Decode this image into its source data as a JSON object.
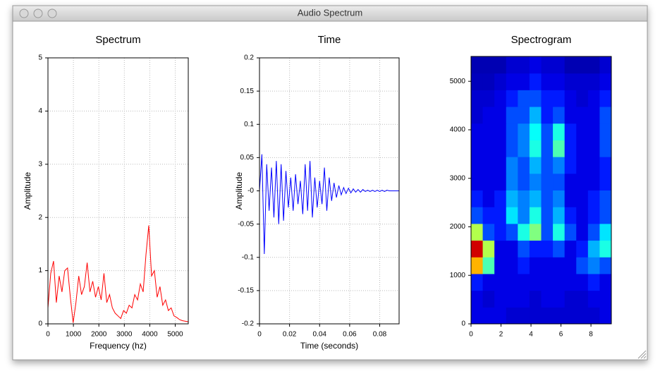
{
  "window": {
    "title": "Audio Spectrum"
  },
  "chart_data": [
    {
      "type": "line",
      "title": "Spectrum",
      "x_label": "Frequency (hz)",
      "y_label": "Amplitude",
      "color": "#ff0000",
      "grid": true,
      "xlim": [
        0,
        5512
      ],
      "xticks": [
        0,
        1000,
        2000,
        3000,
        4000,
        5000
      ],
      "ylim": [
        0,
        5
      ],
      "yticks": [
        0,
        1,
        2,
        3,
        4,
        5
      ],
      "x": [
        0,
        110,
        220,
        330,
        440,
        550,
        660,
        770,
        880,
        990,
        1100,
        1210,
        1320,
        1430,
        1540,
        1650,
        1760,
        1870,
        1980,
        2090,
        2200,
        2310,
        2420,
        2530,
        2640,
        2750,
        2860,
        2970,
        3080,
        3190,
        3300,
        3410,
        3520,
        3630,
        3740,
        3850,
        3960,
        4070,
        4180,
        4290,
        4400,
        4510,
        4620,
        4730,
        4840,
        4950,
        5060,
        5170,
        5280,
        5390,
        5500
      ],
      "values": [
        0.3,
        0.95,
        1.18,
        0.4,
        0.9,
        0.6,
        1.0,
        1.05,
        0.5,
        0.02,
        0.4,
        0.9,
        0.55,
        0.7,
        1.15,
        0.6,
        0.8,
        0.5,
        0.7,
        0.45,
        0.95,
        0.4,
        0.55,
        0.3,
        0.2,
        0.15,
        0.1,
        0.25,
        0.2,
        0.35,
        0.3,
        0.55,
        0.45,
        0.75,
        0.6,
        1.3,
        1.85,
        0.9,
        1.0,
        0.5,
        0.7,
        0.35,
        0.45,
        0.25,
        0.3,
        0.15,
        0.12,
        0.08,
        0.06,
        0.05,
        0.04
      ]
    },
    {
      "type": "line",
      "title": "Time",
      "x_label": "Time (seconds)",
      "y_label": "Amplitude",
      "color": "#0000ff",
      "grid": true,
      "xlim": [
        0,
        0.0929
      ],
      "xticks": [
        0,
        0.02,
        0.04,
        0.06,
        0.08
      ],
      "ylim": [
        -0.2,
        0.2
      ],
      "yticks": [
        -0.2,
        -0.15,
        -0.1,
        -0.05,
        {
          "value": 0,
          "label": "-0"
        },
        0.05,
        0.1,
        0.15,
        0.2
      ],
      "x": [
        0,
        0.0016,
        0.0032,
        0.0048,
        0.0064,
        0.008,
        0.0096,
        0.0112,
        0.0128,
        0.0144,
        0.016,
        0.0176,
        0.0192,
        0.0208,
        0.0224,
        0.024,
        0.0256,
        0.0272,
        0.0288,
        0.0304,
        0.032,
        0.0336,
        0.0352,
        0.0368,
        0.0384,
        0.04,
        0.0416,
        0.0432,
        0.0448,
        0.0464,
        0.048,
        0.0496,
        0.0512,
        0.0528,
        0.0544,
        0.056,
        0.0576,
        0.0592,
        0.0608,
        0.0624,
        0.064,
        0.0656,
        0.0672,
        0.0688,
        0.0704,
        0.072,
        0.0736,
        0.0752,
        0.0768,
        0.0784,
        0.08,
        0.0816,
        0.0832,
        0.0848,
        0.0864,
        0.088,
        0.0896,
        0.0912,
        0.0928
      ],
      "values": [
        0,
        0.055,
        -0.095,
        0.04,
        -0.03,
        0.035,
        -0.04,
        0.045,
        -0.05,
        0.04,
        -0.045,
        0.03,
        -0.025,
        0.02,
        -0.03,
        0.025,
        -0.02,
        0.015,
        -0.035,
        0.04,
        -0.03,
        0.045,
        -0.04,
        0.02,
        -0.025,
        0.015,
        -0.02,
        0.035,
        -0.03,
        0.02,
        -0.015,
        0.012,
        -0.01,
        0.008,
        -0.006,
        0.005,
        -0.004,
        0.004,
        -0.003,
        0.003,
        -0.002,
        0.002,
        -0.002,
        0.002,
        -0.001,
        0.001,
        -0.001,
        0.001,
        -0.001,
        0.001,
        -0.001,
        0.001,
        -0.001,
        0.001,
        0,
        0,
        0,
        0,
        0
      ]
    },
    {
      "type": "heatmap",
      "title": "Spectrogram",
      "colormap": "jet",
      "grid": false,
      "xlim": [
        0,
        9.36
      ],
      "xticks": [
        0,
        2,
        4,
        6,
        8
      ],
      "ylim": [
        0,
        5512
      ],
      "yticks": [
        0,
        1000,
        2000,
        3000,
        4000,
        5000
      ],
      "values": [
        [
          0.1,
          0.1,
          0.1,
          0.08,
          0.08,
          0.08,
          0.08,
          0.08,
          0.08,
          0.08,
          0.08,
          0.1
        ],
        [
          0.1,
          0.08,
          0.1,
          0.1,
          0.1,
          0.08,
          0.1,
          0.1,
          0.08,
          0.08,
          0.1,
          0.1
        ],
        [
          0.15,
          0.1,
          0.1,
          0.1,
          0.1,
          0.1,
          0.1,
          0.1,
          0.1,
          0.1,
          0.15,
          0.1
        ],
        [
          0.7,
          0.45,
          0.1,
          0.1,
          0.15,
          0.1,
          0.1,
          0.1,
          0.1,
          0.2,
          0.25,
          0.2
        ],
        [
          0.92,
          0.55,
          0.1,
          0.1,
          0.2,
          0.15,
          0.15,
          0.2,
          0.1,
          0.15,
          0.3,
          0.4
        ],
        [
          0.55,
          0.2,
          0.15,
          0.2,
          0.4,
          0.5,
          0.2,
          0.4,
          0.2,
          0.1,
          0.2,
          0.35
        ],
        [
          0.2,
          0.15,
          0.15,
          0.35,
          0.25,
          0.4,
          0.2,
          0.3,
          0.15,
          0.1,
          0.15,
          0.2
        ],
        [
          0.15,
          0.1,
          0.15,
          0.3,
          0.25,
          0.3,
          0.2,
          0.25,
          0.1,
          0.1,
          0.15,
          0.2
        ],
        [
          0.1,
          0.1,
          0.1,
          0.25,
          0.2,
          0.25,
          0.2,
          0.2,
          0.1,
          0.1,
          0.1,
          0.15
        ],
        [
          0.1,
          0.1,
          0.1,
          0.25,
          0.2,
          0.3,
          0.2,
          0.25,
          0.15,
          0.1,
          0.1,
          0.15
        ],
        [
          0.1,
          0.1,
          0.1,
          0.2,
          0.25,
          0.4,
          0.2,
          0.45,
          0.15,
          0.1,
          0.1,
          0.2
        ],
        [
          0.1,
          0.1,
          0.1,
          0.2,
          0.25,
          0.38,
          0.2,
          0.4,
          0.15,
          0.1,
          0.1,
          0.2
        ],
        [
          0.08,
          0.1,
          0.1,
          0.2,
          0.2,
          0.3,
          0.15,
          0.2,
          0.1,
          0.1,
          0.1,
          0.2
        ],
        [
          0.08,
          0.08,
          0.1,
          0.15,
          0.2,
          0.2,
          0.15,
          0.15,
          0.1,
          0.08,
          0.1,
          0.15
        ],
        [
          0.06,
          0.06,
          0.08,
          0.1,
          0.1,
          0.15,
          0.1,
          0.1,
          0.08,
          0.08,
          0.08,
          0.1
        ],
        [
          0.05,
          0.05,
          0.05,
          0.08,
          0.08,
          0.1,
          0.08,
          0.08,
          0.05,
          0.05,
          0.05,
          0.08
        ]
      ]
    }
  ]
}
